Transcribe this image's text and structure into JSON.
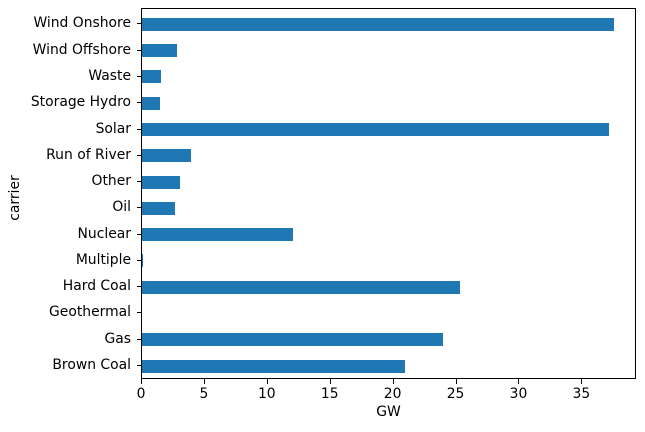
{
  "chart_data": {
    "type": "bar",
    "orientation": "horizontal",
    "categories": [
      "Wind Onshore",
      "Wind Offshore",
      "Waste",
      "Storage Hydro",
      "Solar",
      "Run of River",
      "Other",
      "Oil",
      "Nuclear",
      "Multiple",
      "Hard Coal",
      "Geothermal",
      "Gas",
      "Brown Coal"
    ],
    "values": [
      37.5,
      2.8,
      1.5,
      1.4,
      37.1,
      3.9,
      3.0,
      2.6,
      12.0,
      0.1,
      25.3,
      0.0,
      23.9,
      20.9
    ],
    "title": "",
    "xlabel": "GW",
    "ylabel": "carrier",
    "xlim": [
      0,
      39.3
    ],
    "xticks": [
      0,
      5,
      10,
      15,
      20,
      25,
      30,
      35
    ],
    "bar_color": "#1f77b4",
    "grid": false,
    "legend": false
  }
}
